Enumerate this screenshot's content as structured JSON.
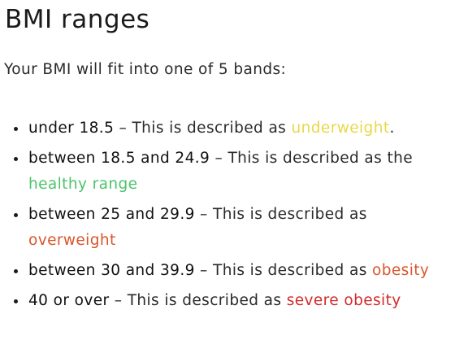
{
  "heading": "BMI ranges",
  "intro": "Your BMI will fit into one of 5 bands:",
  "bands": [
    {
      "range": "under 18.5",
      "connector": " – This is described as ",
      "category": "underweight",
      "suffix": ".",
      "color": "#e8d84a"
    },
    {
      "range": "between 18.5 and 24.9",
      "connector": " – This is described as the ",
      "category": "healthy range",
      "suffix": "",
      "color": "#4cc46c"
    },
    {
      "range": "between 25 and 29.9",
      "connector": " – This is described as ",
      "category": "overweight",
      "suffix": "",
      "color": "#d9562b"
    },
    {
      "range": "between 30 and 39.9",
      "connector": " – This is described as ",
      "category": "obesity",
      "suffix": "",
      "color": "#d9562b"
    },
    {
      "range": "40 or over",
      "connector": " – This is described as ",
      "category": "severe obesity",
      "suffix": "",
      "color": "#d42a2a"
    }
  ]
}
